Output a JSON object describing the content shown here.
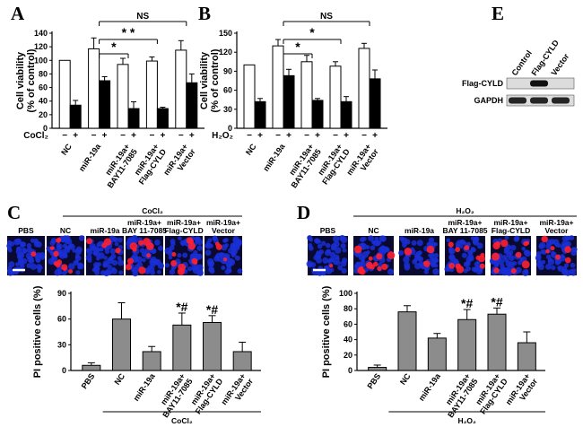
{
  "panel_labels": {
    "A": "A",
    "B": "B",
    "C": "C",
    "D": "D",
    "E": "E"
  },
  "chart_data": [
    {
      "id": "A",
      "type": "bar",
      "ylabel": "Cell viability\n(% of control)",
      "ylim": [
        0,
        140
      ],
      "yticks": [
        "0",
        "20",
        "40",
        "60",
        "80",
        "100",
        "120",
        "140"
      ],
      "groups": [
        "NC",
        "miR-19a",
        "miR-19a+\nBAY11-7085",
        "miR-19a+\nFlag-CYLD",
        "miR-19a+\nVector"
      ],
      "treatment_label": "CoCl₂",
      "signs": [
        "−",
        "+"
      ],
      "series": [
        {
          "name": "−",
          "color": "#ffffff",
          "values": [
            100,
            117,
            94,
            99,
            115
          ],
          "errors": [
            0,
            16,
            9,
            6,
            14
          ]
        },
        {
          "name": "+",
          "color": "#000000",
          "values": [
            34,
            70,
            29,
            29,
            67
          ],
          "errors": [
            7,
            6,
            10,
            2,
            13
          ]
        }
      ],
      "annotations": [
        {
          "text": "NS",
          "from": 1,
          "to": 4,
          "level": 0
        },
        {
          "text": "* *",
          "from": 1,
          "to": 3,
          "level": 1
        },
        {
          "text": "*",
          "from": 1,
          "to": 2,
          "level": 2
        }
      ]
    },
    {
      "id": "B",
      "type": "bar",
      "ylabel": "Cell viability\n(% of control)",
      "ylim": [
        0,
        150
      ],
      "yticks": [
        "0",
        "30",
        "60",
        "90",
        "120",
        "150"
      ],
      "groups": [
        "NC",
        "miR-19a",
        "miR-19a+\nBAY11-7085",
        "miR-19a+\nFlag-CYLD",
        "miR-19a+\nVector"
      ],
      "treatment_label": "H₂O₂",
      "signs": [
        "−",
        "+"
      ],
      "series": [
        {
          "name": "−",
          "color": "#ffffff",
          "values": [
            100,
            130,
            105,
            98,
            126
          ],
          "errors": [
            0,
            10,
            10,
            7,
            8
          ]
        },
        {
          "name": "+",
          "color": "#000000",
          "values": [
            42,
            83,
            44,
            42,
            78
          ],
          "errors": [
            5,
            10,
            3,
            8,
            14
          ]
        }
      ],
      "annotations": [
        {
          "text": "NS",
          "from": 1,
          "to": 4,
          "level": 0
        },
        {
          "text": "*",
          "from": 1,
          "to": 3,
          "level": 1
        },
        {
          "text": "*",
          "from": 1,
          "to": 2,
          "level": 2
        }
      ]
    },
    {
      "id": "C",
      "type": "bar",
      "ylabel": "PI positive cells (%)",
      "ylim": [
        0,
        90
      ],
      "yticks": [
        "0",
        "30",
        "60",
        "90"
      ],
      "groups": [
        "PBS",
        "NC",
        "miR-19a",
        "miR-19a+\nBAY11-7085",
        "miR-19a+\nFlag-CYLD",
        "miR-19a+\nVector"
      ],
      "bracket_label": "CoCl₂",
      "color": "#8c8c8c",
      "values": [
        6,
        60,
        22,
        53,
        56,
        22
      ],
      "errors": [
        3,
        19,
        6,
        14,
        8,
        11
      ],
      "marks": [
        "",
        "",
        "",
        "*#",
        "*#",
        ""
      ],
      "micrographs": {
        "header": "CoCl₂",
        "labels": [
          "PBS",
          "NC",
          "miR-19a",
          "miR-19a+\nBAY 11-7085",
          "miR-19a+\nFlag-CYLD",
          "miR-19a+\nVector"
        ],
        "red_density": [
          0.05,
          0.55,
          0.18,
          0.45,
          0.45,
          0.16
        ]
      }
    },
    {
      "id": "D",
      "type": "bar",
      "ylabel": "PI positive cells (%)",
      "ylim": [
        0,
        100
      ],
      "yticks": [
        "0",
        "20",
        "40",
        "60",
        "80",
        "100"
      ],
      "groups": [
        "PBS",
        "NC",
        "miR-19a",
        "miR-19a+\nBAY11-7085",
        "miR-19a+\nFlag-CYLD",
        "miR-19a+\nVector"
      ],
      "bracket_label": "H₂O₂",
      "color": "#8c8c8c",
      "values": [
        4,
        76,
        42,
        66,
        73,
        36
      ],
      "errors": [
        3,
        8,
        6,
        13,
        8,
        14
      ],
      "marks": [
        "",
        "",
        "",
        "*#",
        "*#",
        ""
      ],
      "micrographs": {
        "header": "H₂O₂",
        "labels": [
          "PBS",
          "NC",
          "miR-19a",
          "miR-19a+\nBAY 11-7085",
          "miR-19a+\nFlag-CYLD",
          "miR-19a+\nVector"
        ],
        "red_density": [
          0.05,
          0.6,
          0.2,
          0.5,
          0.5,
          0.3
        ]
      }
    }
  ],
  "blot": {
    "lanes": [
      "Control",
      "Flag-CYLD",
      "Vector"
    ],
    "rows": [
      {
        "label": "Flag-CYLD",
        "intensity": [
          0.0,
          1.0,
          0.0
        ]
      },
      {
        "label": "GAPDH",
        "intensity": [
          0.9,
          0.9,
          0.9
        ]
      }
    ]
  },
  "colors": {
    "nucleus": "#1a2fd6",
    "pi": "#ff2030",
    "bg": "#0a0a30"
  }
}
